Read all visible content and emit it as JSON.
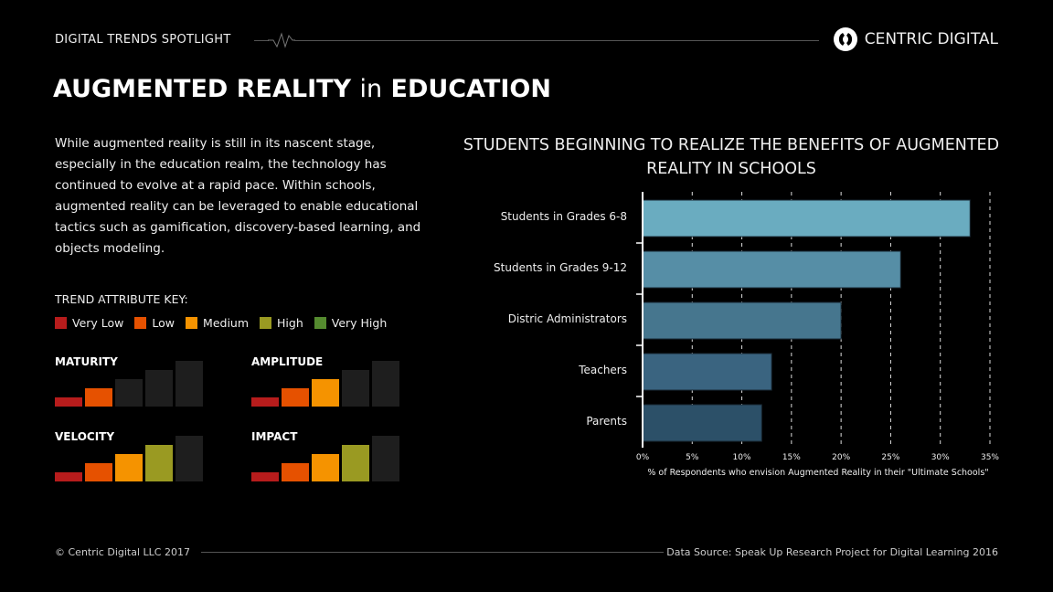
{
  "header": {
    "series_title": "DIGITAL TRENDS SPOTLIGHT",
    "brand": "CENTRIC DIGITAL",
    "logo_icon": "circular-arrows-icon"
  },
  "title": {
    "bold1": "AUGMENTED REALITY",
    "normal": "in",
    "bold2": "EDUCATION"
  },
  "intro": "While augmented reality is still in its nascent stage, especially in the education realm, the technology has continued to evolve at a rapid pace. Within schools, augmented reality can be leveraged to enable educational tactics such as gamification, discovery-based learning, and objects modeling.",
  "key": {
    "heading": "TREND ATTRIBUTE KEY:",
    "levels": [
      {
        "label": "Very Low",
        "color": "#b71c1c"
      },
      {
        "label": "Low",
        "color": "#e65100"
      },
      {
        "label": "Medium",
        "color": "#f59300"
      },
      {
        "label": "High",
        "color": "#9a9a22"
      },
      {
        "label": "Very High",
        "color": "#558b2f"
      }
    ]
  },
  "attributes": [
    {
      "label": "MATURITY",
      "level": 2
    },
    {
      "label": "AMPLITUDE",
      "level": 3
    },
    {
      "label": "VELOCITY",
      "level": 4
    },
    {
      "label": "IMPACT",
      "level": 4
    }
  ],
  "chart_data": {
    "type": "bar",
    "orientation": "horizontal",
    "title": "STUDENTS BEGINNING TO REALIZE THE BENEFITS OF AUGMENTED REALITY IN SCHOOLS",
    "categories": [
      "Students in Grades 6-8",
      "Students in Grades 9-12",
      "Distric Administrators",
      "Teachers",
      "Parents"
    ],
    "values": [
      33,
      26,
      20,
      13,
      12
    ],
    "colors": [
      "#6aacc0",
      "#568ea6",
      "#46768e",
      "#3a6480",
      "#2c5068"
    ],
    "xlabel": "% of Respondents who envision Augmented Reality in their \"Ultimate Schools\"",
    "xlim": [
      0,
      35
    ],
    "ticks": [
      "0%",
      "5%",
      "10%",
      "15%",
      "20%",
      "25%",
      "30%",
      "35%"
    ],
    "grid": "vertical-dashed"
  },
  "footer": {
    "copyright": "© Centric Digital LLC 2017",
    "source": "Data Source: Speak Up Research Project for Digital Learning 2016"
  }
}
